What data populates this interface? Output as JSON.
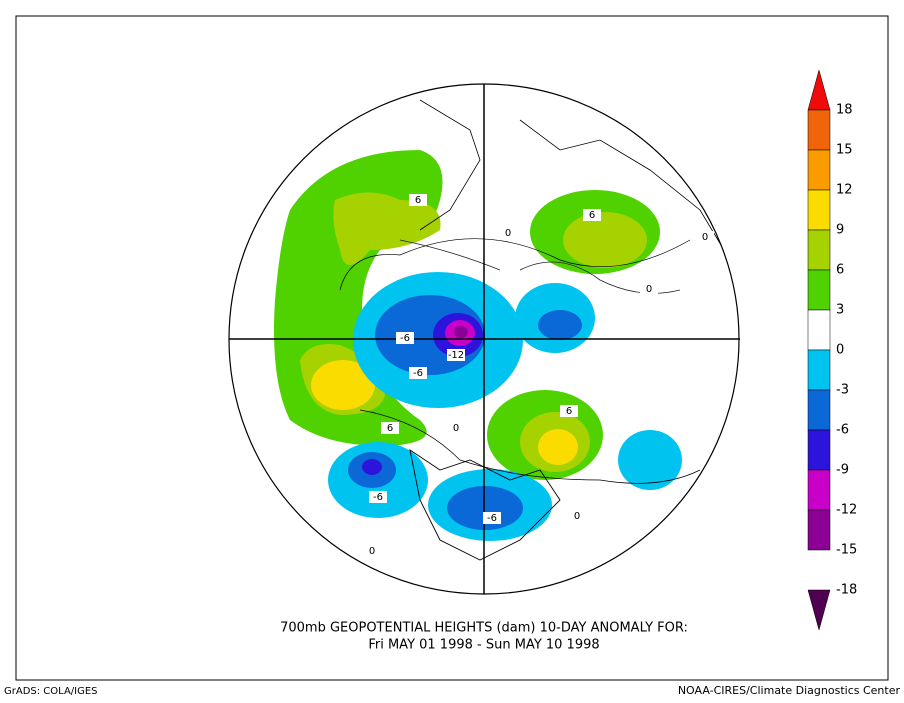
{
  "title": {
    "line1": "700mb GEOPOTENTIAL HEIGHTS (dam)    10-DAY ANOMALY FOR:",
    "line2": "Fri MAY 01 1998 - Sun MAY 10 1998"
  },
  "footer": {
    "left": "GrADS: COLA/IGES",
    "right": "NOAA-CIRES/Climate Diagnostics Center"
  },
  "colorbar": {
    "levels": [
      18,
      15,
      12,
      9,
      6,
      3,
      0,
      -3,
      -6,
      -9,
      -12,
      -15,
      -18
    ],
    "colors": [
      "#f00a0a",
      "#f0640a",
      "#fa9b00",
      "#fadc00",
      "#a5d200",
      "#50d200",
      "#ffffff",
      "#00c3f0",
      "#0a69d7",
      "#2d14dc",
      "#c800c8",
      "#8c0096",
      "#500050"
    ]
  },
  "contour_labels": [
    "6",
    "6",
    "0",
    "0",
    "0",
    "-6",
    "-12",
    "-6",
    "6",
    "6",
    "0",
    "-6",
    "-6",
    "0",
    "0"
  ]
}
